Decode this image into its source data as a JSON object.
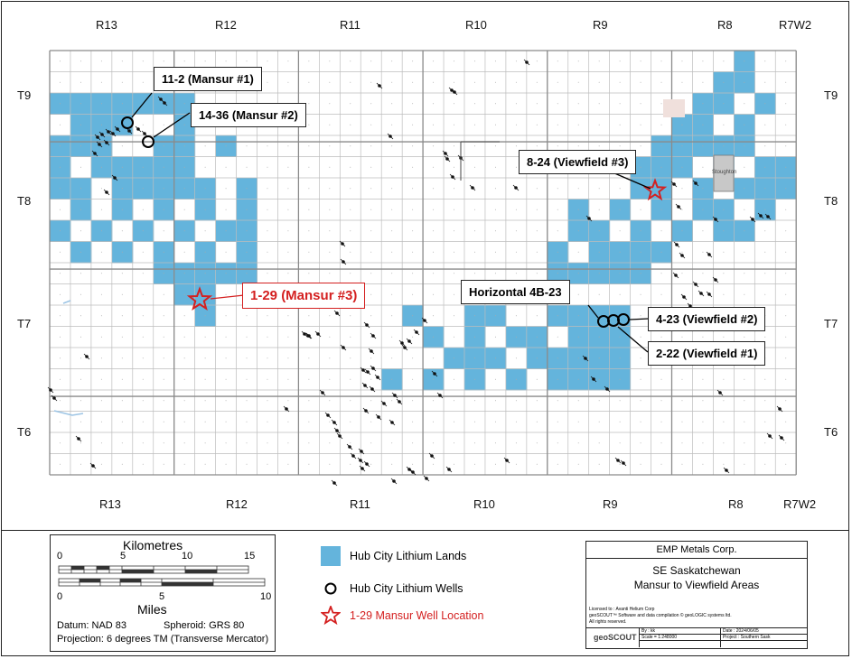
{
  "map": {
    "range_labels_top": [
      "R13",
      "R12",
      "R11",
      "R10",
      "R9",
      "R8",
      "R7W2"
    ],
    "range_labels_bottom": [
      "R13",
      "R12",
      "R11",
      "R10",
      "R9",
      "R8",
      "R7W2"
    ],
    "township_labels_left": [
      "T9",
      "T8",
      "T7",
      "T6"
    ],
    "township_labels_right": [
      "T9",
      "T8",
      "T7",
      "T6"
    ],
    "land_color": "#64b4dc",
    "star_color": "#d42020",
    "town_label": "Stoughton",
    "callouts": {
      "c11_2": "11-2 (Mansur #1)",
      "c14_36": "14-36 (Mansur #2)",
      "c8_24": "8-24 (Viewfield #3)",
      "c1_29": "1-29 (Mansur #3)",
      "c4b_23": "Horizontal 4B-23",
      "c4_23": "4-23 (Viewfield #2)",
      "c2_22": "2-22 (Viewfield #1)"
    }
  },
  "scale_bar": {
    "km_title": "Kilometres",
    "km_ticks": [
      "0",
      "5",
      "10",
      "15"
    ],
    "mi_title": "Miles",
    "mi_ticks": [
      "0",
      "5",
      "10"
    ],
    "datum": "Datum: NAD 83",
    "spheroid": "Spheroid: GRS 80",
    "projection": "Projection: 6 degrees TM (Transverse Mercator)"
  },
  "legend": {
    "lands": "Hub City Lithium Lands",
    "wells": "Hub City Lithium Wells",
    "location": "1-29 Mansur Well Location"
  },
  "title_block": {
    "company": "EMP Metals Corp.",
    "region": "SE Saskatchewan",
    "area": "Mansur to Viewfield Areas",
    "licensed": "Licensed to : Avanti Helium Corp",
    "software": "geoSCOUT™ Software and data compilation © geoLOGIC systems ltd.",
    "rights": "All rights reserved.",
    "by": "By : kk",
    "date": "Date : 2024/06/05",
    "scale": "Scale = 1:248000",
    "project": "Project : Southern Sask",
    "logo": "geoSCOUT"
  }
}
